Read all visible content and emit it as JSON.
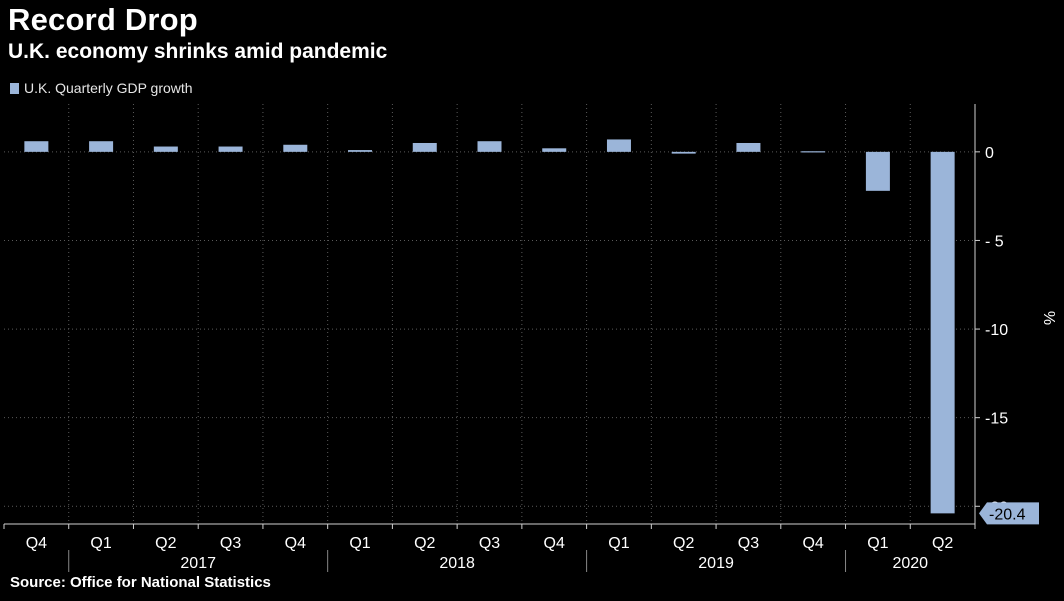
{
  "chart_data": {
    "type": "bar",
    "title": "Record Drop",
    "subtitle": "U.K. economy shrinks amid pandemic",
    "source": "Source: Office for National Statistics",
    "ylabel": "%",
    "ylim": [
      -21,
      2.7
    ],
    "yticks": [
      0,
      -5,
      -10,
      -15,
      -20
    ],
    "ytick_labels": [
      "0",
      "- 5",
      "-10",
      "-15",
      "-20"
    ],
    "grid": true,
    "legend_position": "top-left",
    "categories": [
      "Q4",
      "Q1",
      "Q2",
      "Q3",
      "Q4",
      "Q1",
      "Q2",
      "Q3",
      "Q4",
      "Q1",
      "Q2",
      "Q3",
      "Q4",
      "Q1",
      "Q2"
    ],
    "year_groups": [
      {
        "label": "2017",
        "start": 1,
        "end": 4
      },
      {
        "label": "2018",
        "start": 5,
        "end": 8
      },
      {
        "label": "2019",
        "start": 9,
        "end": 12
      },
      {
        "label": "2020",
        "start": 13,
        "end": 14
      }
    ],
    "series": [
      {
        "name": "U.K. Quarterly GDP growth",
        "color": "#9bb5d9",
        "values": [
          0.6,
          0.6,
          0.3,
          0.3,
          0.4,
          0.1,
          0.5,
          0.6,
          0.2,
          0.7,
          -0.1,
          0.5,
          0.0,
          -2.2,
          -20.4
        ]
      }
    ],
    "annotation": {
      "label": "-20.4",
      "index": 14,
      "value": -20.4
    }
  }
}
